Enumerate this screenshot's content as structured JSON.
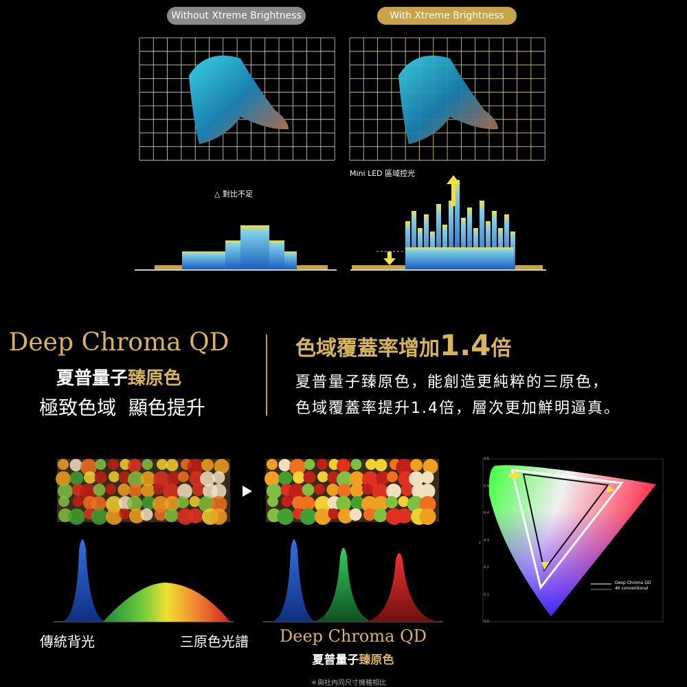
{
  "comparison": {
    "without_label": "Without Xtreme Brightness",
    "with_label": "With Xtreme Brightness",
    "mini_led_note": "Mini LED 區域控光",
    "contrast_note": "△ 對比不足"
  },
  "feature": {
    "brand": "Deep Chroma QD",
    "subtitle_prefix": "夏普量子",
    "subtitle_highlight": "臻原色",
    "tagline": "極致色域  顯色提升",
    "heading_prefix": "色域覆蓋率增加",
    "heading_number": "1.4",
    "heading_suffix": "倍",
    "lines": [
      "夏普量子臻原色，能創造更純粹的三原色，",
      "色域覆蓋率提升1.4倍，層次更加鮮明逼真。"
    ]
  },
  "spectrum": {
    "left_label": "傳統背光",
    "middle_label": "三原色光譜",
    "brand": "Deep Chroma QD",
    "subtitle_prefix": "夏普量子",
    "subtitle_highlight": "臻原色"
  },
  "gamut": {
    "y_axis_label": "y",
    "y_ticks": [
      "0.0",
      "0.1",
      "0.2",
      "0.3",
      "0.4",
      "0.5",
      "0.6"
    ],
    "legend": [
      "Deep Chroma QD",
      "4K conventional"
    ]
  },
  "footnote": "＊與社內同尺寸機種相比"
}
